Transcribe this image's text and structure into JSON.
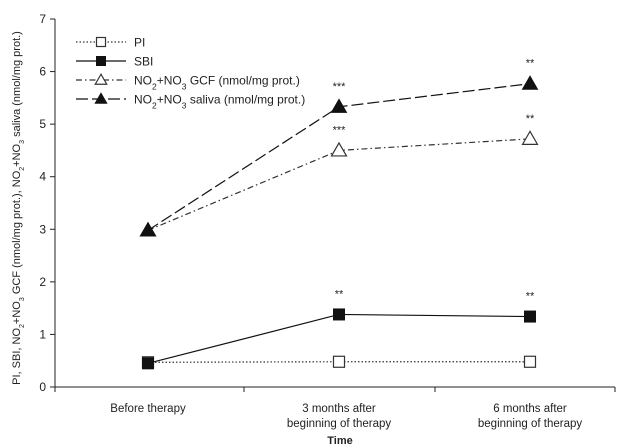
{
  "chart_data": {
    "type": "line",
    "categories": [
      "Before therapy",
      "3 months after beginning of therapy",
      "6 months after beginning of therapy"
    ],
    "category_lines": [
      [
        "Before therapy"
      ],
      [
        "3 months after",
        "beginning of therapy"
      ],
      [
        "6 months after",
        "beginning of therapy"
      ]
    ],
    "xlabel": "Time",
    "ylabel": "PI, SBI, NO2+NO3 GCF (nmol/mg prot.), NO2+NO3 saliva (nmol/mg prot.)",
    "ylim": [
      0,
      7
    ],
    "yticks": [
      0,
      1,
      2,
      3,
      4,
      5,
      6,
      7
    ],
    "grid": false,
    "legend_position": "top-left",
    "series": [
      {
        "name": "PI",
        "name_parts": [
          [
            "PI",
            ""
          ]
        ],
        "values": [
          0.47,
          0.48,
          0.48
        ],
        "marker": "open-square",
        "line_style": "dotted",
        "color": "#333333",
        "annotations": [
          "",
          "",
          ""
        ]
      },
      {
        "name": "SBI",
        "name_parts": [
          [
            "SBI",
            ""
          ]
        ],
        "values": [
          0.45,
          1.38,
          1.34
        ],
        "marker": "filled-square",
        "line_style": "solid",
        "color": "#111111",
        "annotations": [
          "",
          "**",
          "**"
        ]
      },
      {
        "name": "NO2+NO3 GCF (nmol/mg prot.)",
        "name_parts": [
          [
            "NO",
            ""
          ],
          [
            "2",
            "sub"
          ],
          [
            "+NO",
            ""
          ],
          [
            "3",
            "sub"
          ],
          [
            " GCF (nmol/mg prot.)",
            ""
          ]
        ],
        "values": [
          2.98,
          4.5,
          4.72
        ],
        "marker": "open-triangle",
        "line_style": "dash-dot",
        "color": "#333333",
        "annotations": [
          "",
          "***",
          "**"
        ]
      },
      {
        "name": "NO2+NO3 saliva (nmol/mg prot.)",
        "name_parts": [
          [
            "NO",
            ""
          ],
          [
            "2",
            "sub"
          ],
          [
            "+NO",
            ""
          ],
          [
            "3",
            "sub"
          ],
          [
            " saliva (nmol/mg prot.)",
            ""
          ]
        ],
        "values": [
          2.98,
          5.33,
          5.77
        ],
        "marker": "filled-triangle",
        "line_style": "long-dash",
        "color": "#111111",
        "annotations": [
          "",
          "***",
          "**"
        ]
      }
    ]
  }
}
